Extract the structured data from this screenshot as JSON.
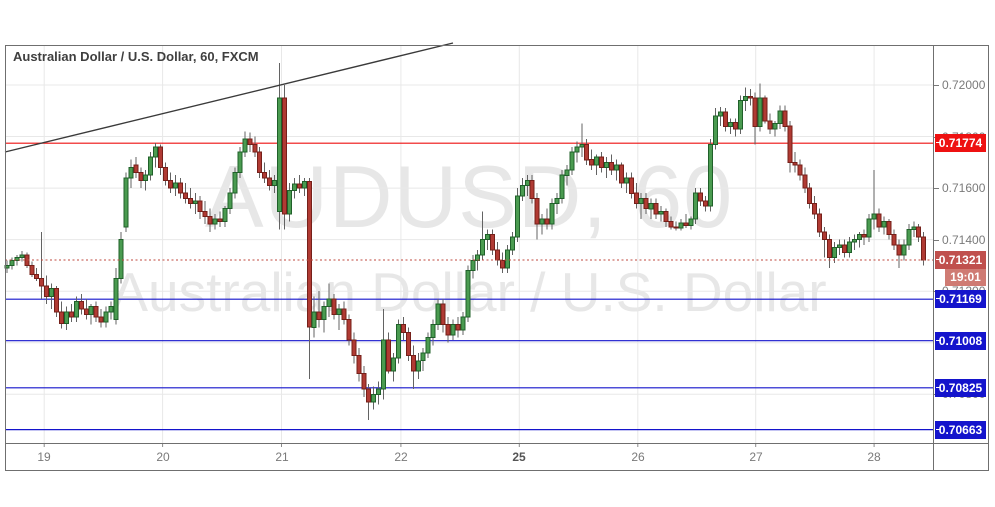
{
  "header": {
    "title": "Australian Dollar / U.S. Dollar, 60, FXCM"
  },
  "watermark": {
    "line1": "AUDUSD, 60",
    "line2": "Australian Dollar / U.S. Dollar"
  },
  "chart_data": {
    "type": "candlestick",
    "symbol": "AUDUSD",
    "interval_minutes": 60,
    "provider": "FXCM",
    "grid": true,
    "price_axis_ticks": [
      {
        "p": 0.72,
        "label": "0.72000"
      },
      {
        "p": 0.718,
        "label": "0.71800"
      },
      {
        "p": 0.716,
        "label": "0.71600"
      },
      {
        "p": 0.714,
        "label": "0.71400"
      },
      {
        "p": 0.712,
        "label": "0.71200"
      },
      {
        "p": 0.708,
        "label": "0.70800"
      }
    ],
    "grid_prices": [
      0.72,
      0.718,
      0.716,
      0.714,
      0.712,
      0.71,
      0.708
    ],
    "time_axis_ticks": [
      {
        "label": "19",
        "i": 7.5,
        "bold": false
      },
      {
        "label": "20",
        "i": 31.4,
        "bold": false
      },
      {
        "label": "21",
        "i": 55.4,
        "bold": false
      },
      {
        "label": "22",
        "i": 79.5,
        "bold": false
      },
      {
        "label": "25",
        "i": 103.4,
        "bold": true
      },
      {
        "label": "26",
        "i": 127.3,
        "bold": false
      },
      {
        "label": "27",
        "i": 151.1,
        "bold": false
      },
      {
        "label": "28",
        "i": 175.0,
        "bold": false
      }
    ],
    "levels": [
      {
        "price": 0.71774,
        "label": "0.71774",
        "color": "#ee1111",
        "role": "resistance-line"
      },
      {
        "price": 0.71169,
        "label": "0.71169",
        "color": "#1414cc",
        "role": "support-line"
      },
      {
        "price": 0.71008,
        "label": "0.71008",
        "color": "#1414cc",
        "role": "support-line"
      },
      {
        "price": 0.70825,
        "label": "0.70825",
        "color": "#1414cc",
        "role": "support-line"
      },
      {
        "price": 0.70663,
        "label": "0.70663",
        "color": "#1414cc",
        "role": "support-line"
      }
    ],
    "last_price": {
      "price": 0.71321,
      "label": "0.71321",
      "countdown": "19:01",
      "line_color": "#bf4a3f",
      "label_bg": "#c0504d",
      "timer_bg": "#cf7b73"
    },
    "trendline": {
      "x1": 5,
      "y1": 152,
      "x2": 453,
      "y2": 43,
      "color": "#3a3a3a"
    },
    "ylim": [
      0.70611,
      0.72155
    ],
    "colors": {
      "up_fill": "#4a9b50",
      "up_border": "#20602a",
      "down_fill": "#b03a33",
      "down_border": "#75201a",
      "wick": "#636363",
      "grid": "#e8e8e8",
      "axis_text": "#7a7a7a"
    },
    "candles": [
      [
        0.7129,
        0.7132,
        0.7127,
        0.713
      ],
      [
        0.713,
        0.7133,
        0.71285,
        0.7132
      ],
      [
        0.7132,
        0.7134,
        0.713,
        0.7133
      ],
      [
        0.7133,
        0.71355,
        0.71315,
        0.7134
      ],
      [
        0.7134,
        0.7135,
        0.7129,
        0.713
      ],
      [
        0.713,
        0.71315,
        0.71255,
        0.71265
      ],
      [
        0.71265,
        0.7129,
        0.7124,
        0.7125
      ],
      [
        0.7125,
        0.7143,
        0.7117,
        0.7122
      ],
      [
        0.7122,
        0.7126,
        0.7115,
        0.7118
      ],
      [
        0.7118,
        0.7123,
        0.7113,
        0.7121
      ],
      [
        0.7121,
        0.7122,
        0.711,
        0.7112
      ],
      [
        0.7112,
        0.7116,
        0.71055,
        0.71075
      ],
      [
        0.71075,
        0.7114,
        0.7105,
        0.7112
      ],
      [
        0.7112,
        0.7115,
        0.7108,
        0.711
      ],
      [
        0.711,
        0.7118,
        0.7108,
        0.7116
      ],
      [
        0.7116,
        0.7119,
        0.7111,
        0.7113
      ],
      [
        0.7113,
        0.7117,
        0.7109,
        0.7111
      ],
      [
        0.7111,
        0.7115,
        0.7107,
        0.7114
      ],
      [
        0.7114,
        0.7116,
        0.7108,
        0.711
      ],
      [
        0.711,
        0.7113,
        0.7106,
        0.7108
      ],
      [
        0.7108,
        0.7114,
        0.7106,
        0.7112
      ],
      [
        0.7112,
        0.7116,
        0.7109,
        0.7114
      ],
      [
        0.7109,
        0.7129,
        0.7107,
        0.7125
      ],
      [
        0.7125,
        0.7143,
        0.7123,
        0.714
      ],
      [
        0.7145,
        0.7166,
        0.7143,
        0.7164
      ],
      [
        0.7164,
        0.7171,
        0.716,
        0.7168
      ],
      [
        0.7169,
        0.7172,
        0.7164,
        0.7166
      ],
      [
        0.7166,
        0.7168,
        0.716,
        0.7163
      ],
      [
        0.7163,
        0.7167,
        0.7159,
        0.7165
      ],
      [
        0.7165,
        0.7174,
        0.7163,
        0.7172
      ],
      [
        0.7172,
        0.71775,
        0.7168,
        0.7176
      ],
      [
        0.7176,
        0.7177,
        0.7165,
        0.7168
      ],
      [
        0.7168,
        0.717,
        0.7161,
        0.7163
      ],
      [
        0.7163,
        0.7166,
        0.7158,
        0.716
      ],
      [
        0.716,
        0.7165,
        0.7157,
        0.7162
      ],
      [
        0.7162,
        0.7164,
        0.7156,
        0.7158
      ],
      [
        0.7158,
        0.7162,
        0.7154,
        0.7156
      ],
      [
        0.7156,
        0.716,
        0.7152,
        0.7154
      ],
      [
        0.7154,
        0.7158,
        0.715,
        0.7155
      ],
      [
        0.7155,
        0.7157,
        0.7148,
        0.7151
      ],
      [
        0.7151,
        0.7155,
        0.7146,
        0.7149
      ],
      [
        0.7149,
        0.7152,
        0.7143,
        0.7146
      ],
      [
        0.7146,
        0.715,
        0.7144,
        0.7148
      ],
      [
        0.7148,
        0.7151,
        0.7145,
        0.7147
      ],
      [
        0.7147,
        0.7153,
        0.7145,
        0.7152
      ],
      [
        0.7152,
        0.716,
        0.715,
        0.7158
      ],
      [
        0.7158,
        0.7168,
        0.7156,
        0.7166
      ],
      [
        0.7166,
        0.7176,
        0.7164,
        0.7174
      ],
      [
        0.7174,
        0.7182,
        0.7172,
        0.7179
      ],
      [
        0.7179,
        0.71815,
        0.7174,
        0.7177
      ],
      [
        0.7177,
        0.718,
        0.7172,
        0.7174
      ],
      [
        0.7174,
        0.7176,
        0.7164,
        0.7166
      ],
      [
        0.7166,
        0.717,
        0.7162,
        0.7164
      ],
      [
        0.7164,
        0.7167,
        0.7159,
        0.7161
      ],
      [
        0.7161,
        0.7165,
        0.7158,
        0.7163
      ],
      [
        0.7151,
        0.72085,
        0.7144,
        0.7195
      ],
      [
        0.7195,
        0.72,
        0.7144,
        0.715
      ],
      [
        0.715,
        0.7162,
        0.7147,
        0.7159
      ],
      [
        0.7159,
        0.7164,
        0.7156,
        0.71615
      ],
      [
        0.71615,
        0.7165,
        0.7158,
        0.716
      ],
      [
        0.716,
        0.7164,
        0.7157,
        0.71625
      ],
      [
        0.71625,
        0.7164,
        0.7086,
        0.7106
      ],
      [
        0.7106,
        0.7118,
        0.7102,
        0.7112
      ],
      [
        0.7112,
        0.712,
        0.7106,
        0.7109
      ],
      [
        0.7109,
        0.7116,
        0.7104,
        0.7114
      ],
      [
        0.7114,
        0.7123,
        0.711,
        0.7117
      ],
      [
        0.7117,
        0.7119,
        0.7109,
        0.7111
      ],
      [
        0.7111,
        0.7115,
        0.7105,
        0.7113
      ],
      [
        0.7113,
        0.7116,
        0.7107,
        0.7109
      ],
      [
        0.7109,
        0.7111,
        0.7099,
        0.7101
      ],
      [
        0.7101,
        0.7104,
        0.7092,
        0.7095
      ],
      [
        0.7095,
        0.7098,
        0.7085,
        0.7088
      ],
      [
        0.7088,
        0.7091,
        0.7079,
        0.7082
      ],
      [
        0.7082,
        0.7084,
        0.707,
        0.7077
      ],
      [
        0.7077,
        0.7083,
        0.7074,
        0.708
      ],
      [
        0.708,
        0.7085,
        0.7076,
        0.7082
      ],
      [
        0.7082,
        0.7113,
        0.7078,
        0.7101
      ],
      [
        0.7101,
        0.7104,
        0.7088,
        0.7089
      ],
      [
        0.7089,
        0.7096,
        0.7085,
        0.7094
      ],
      [
        0.7094,
        0.7109,
        0.7092,
        0.7107
      ],
      [
        0.7107,
        0.711,
        0.7101,
        0.7104
      ],
      [
        0.7104,
        0.7106,
        0.7093,
        0.7095
      ],
      [
        0.7095,
        0.7099,
        0.7082,
        0.7089
      ],
      [
        0.7089,
        0.7096,
        0.7086,
        0.7093
      ],
      [
        0.7093,
        0.7098,
        0.7089,
        0.7096
      ],
      [
        0.7096,
        0.7104,
        0.7094,
        0.7102
      ],
      [
        0.7102,
        0.7109,
        0.7099,
        0.7107
      ],
      [
        0.7107,
        0.7117,
        0.7105,
        0.7115
      ],
      [
        0.7115,
        0.7117,
        0.7104,
        0.7107
      ],
      [
        0.7107,
        0.711,
        0.71,
        0.7103
      ],
      [
        0.7103,
        0.7109,
        0.7101,
        0.7107
      ],
      [
        0.7107,
        0.711,
        0.7102,
        0.7105
      ],
      [
        0.7105,
        0.7112,
        0.7103,
        0.711
      ],
      [
        0.711,
        0.713,
        0.7108,
        0.7128
      ],
      [
        0.7128,
        0.7134,
        0.7125,
        0.7132
      ],
      [
        0.7132,
        0.7136,
        0.7128,
        0.7134
      ],
      [
        0.7134,
        0.7151,
        0.7132,
        0.714
      ],
      [
        0.714,
        0.7144,
        0.7136,
        0.7142
      ],
      [
        0.7142,
        0.7144,
        0.7134,
        0.7136
      ],
      [
        0.7136,
        0.7139,
        0.713,
        0.7132
      ],
      [
        0.7132,
        0.7135,
        0.7127,
        0.7129
      ],
      [
        0.7129,
        0.7138,
        0.7127,
        0.7136
      ],
      [
        0.7136,
        0.7143,
        0.7134,
        0.7141
      ],
      [
        0.7141,
        0.716,
        0.7139,
        0.7157
      ],
      [
        0.7157,
        0.7164,
        0.7155,
        0.7161
      ],
      [
        0.7161,
        0.7165,
        0.7157,
        0.7163
      ],
      [
        0.7163,
        0.7165,
        0.7154,
        0.7156
      ],
      [
        0.7156,
        0.7158,
        0.714,
        0.7146
      ],
      [
        0.7146,
        0.715,
        0.7142,
        0.7148
      ],
      [
        0.7148,
        0.7152,
        0.7144,
        0.7146
      ],
      [
        0.7146,
        0.7156,
        0.7144,
        0.7154
      ],
      [
        0.7154,
        0.7158,
        0.715,
        0.7156
      ],
      [
        0.7156,
        0.7167,
        0.7154,
        0.7165
      ],
      [
        0.7165,
        0.7169,
        0.7161,
        0.7167
      ],
      [
        0.7167,
        0.7176,
        0.7165,
        0.7174
      ],
      [
        0.7174,
        0.7178,
        0.717,
        0.7176
      ],
      [
        0.7176,
        0.7185,
        0.7172,
        0.7177
      ],
      [
        0.7177,
        0.7179,
        0.7169,
        0.7171
      ],
      [
        0.7171,
        0.7175,
        0.7167,
        0.7169
      ],
      [
        0.7169,
        0.7173,
        0.7165,
        0.7172
      ],
      [
        0.7172,
        0.7174,
        0.7166,
        0.7168
      ],
      [
        0.7168,
        0.7172,
        0.7164,
        0.717
      ],
      [
        0.717,
        0.7173,
        0.7165,
        0.7167
      ],
      [
        0.7167,
        0.7171,
        0.7163,
        0.7169
      ],
      [
        0.7169,
        0.717,
        0.716,
        0.7162
      ],
      [
        0.7162,
        0.7166,
        0.7158,
        0.7164
      ],
      [
        0.7164,
        0.7166,
        0.7156,
        0.7158
      ],
      [
        0.7158,
        0.7162,
        0.7152,
        0.7154
      ],
      [
        0.7154,
        0.7158,
        0.7148,
        0.7156
      ],
      [
        0.7156,
        0.7158,
        0.715,
        0.7152
      ],
      [
        0.7152,
        0.7156,
        0.7148,
        0.7154
      ],
      [
        0.7154,
        0.7156,
        0.7148,
        0.715
      ],
      [
        0.715,
        0.7153,
        0.7147,
        0.7151
      ],
      [
        0.7151,
        0.7152,
        0.7145,
        0.7147
      ],
      [
        0.7147,
        0.7149,
        0.7144,
        0.7145
      ],
      [
        0.7145,
        0.7147,
        0.71435,
        0.71445
      ],
      [
        0.71445,
        0.7148,
        0.71435,
        0.71465
      ],
      [
        0.71465,
        0.715,
        0.71445,
        0.71455
      ],
      [
        0.71455,
        0.7149,
        0.7144,
        0.7148
      ],
      [
        0.7148,
        0.716,
        0.7146,
        0.7158
      ],
      [
        0.7158,
        0.716,
        0.7153,
        0.7155
      ],
      [
        0.7155,
        0.7157,
        0.7151,
        0.7153
      ],
      [
        0.7153,
        0.7179,
        0.7151,
        0.7177
      ],
      [
        0.7177,
        0.7191,
        0.7175,
        0.7188
      ],
      [
        0.7188,
        0.71915,
        0.7184,
        0.71895
      ],
      [
        0.71895,
        0.7191,
        0.7182,
        0.7184
      ],
      [
        0.7184,
        0.7187,
        0.7181,
        0.71855
      ],
      [
        0.71855,
        0.7187,
        0.718,
        0.7183
      ],
      [
        0.7183,
        0.7196,
        0.7181,
        0.7194
      ],
      [
        0.7194,
        0.7199,
        0.719,
        0.71955
      ],
      [
        0.71955,
        0.71985,
        0.7192,
        0.7195
      ],
      [
        0.7195,
        0.7197,
        0.7177,
        0.7184
      ],
      [
        0.7184,
        0.72005,
        0.7182,
        0.7195
      ],
      [
        0.7195,
        0.7196,
        0.7185,
        0.7186
      ],
      [
        0.7186,
        0.7189,
        0.7181,
        0.7183
      ],
      [
        0.7183,
        0.7186,
        0.718,
        0.7185
      ],
      [
        0.7185,
        0.7192,
        0.7183,
        0.719
      ],
      [
        0.719,
        0.7192,
        0.7182,
        0.7184
      ],
      [
        0.7184,
        0.7186,
        0.7166,
        0.717
      ],
      [
        0.717,
        0.7174,
        0.7166,
        0.7169
      ],
      [
        0.7169,
        0.7171,
        0.7163,
        0.7165
      ],
      [
        0.7165,
        0.7168,
        0.7158,
        0.716
      ],
      [
        0.716,
        0.7162,
        0.7152,
        0.7154
      ],
      [
        0.7154,
        0.7157,
        0.7148,
        0.715
      ],
      [
        0.715,
        0.7152,
        0.7141,
        0.7143
      ],
      [
        0.7143,
        0.7145,
        0.7133,
        0.714
      ],
      [
        0.714,
        0.7142,
        0.7129,
        0.7133
      ],
      [
        0.7133,
        0.7139,
        0.7131,
        0.7137
      ],
      [
        0.7137,
        0.714,
        0.7134,
        0.7138
      ],
      [
        0.7138,
        0.714,
        0.7133,
        0.7135
      ],
      [
        0.7135,
        0.7141,
        0.7133,
        0.7139
      ],
      [
        0.7139,
        0.7142,
        0.7136,
        0.714
      ],
      [
        0.714,
        0.7143,
        0.7137,
        0.7142
      ],
      [
        0.7142,
        0.7144,
        0.7138,
        0.7141
      ],
      [
        0.7141,
        0.715,
        0.7139,
        0.7148
      ],
      [
        0.7148,
        0.7167,
        0.7144,
        0.715
      ],
      [
        0.715,
        0.7152,
        0.7143,
        0.7145
      ],
      [
        0.7145,
        0.7149,
        0.7142,
        0.7147
      ],
      [
        0.7147,
        0.7148,
        0.714,
        0.7142
      ],
      [
        0.7142,
        0.7144,
        0.7136,
        0.7138
      ],
      [
        0.7138,
        0.714,
        0.7129,
        0.7134
      ],
      [
        0.7134,
        0.714,
        0.7132,
        0.7138
      ],
      [
        0.7138,
        0.7146,
        0.7136,
        0.7144
      ],
      [
        0.7144,
        0.7147,
        0.7141,
        0.7145
      ],
      [
        0.7145,
        0.7146,
        0.7139,
        0.7141
      ],
      [
        0.7141,
        0.7143,
        0.713,
        0.71321
      ]
    ]
  }
}
